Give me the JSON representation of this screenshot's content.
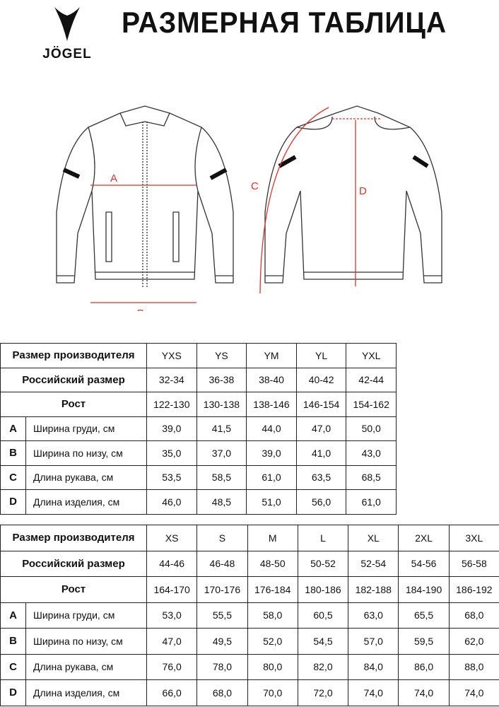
{
  "brand": "JÖGEL",
  "title": "РАЗМЕРНАЯ ТАБЛИЦА",
  "diagram": {
    "labels": {
      "a": "A",
      "b": "B",
      "c": "C",
      "d": "D"
    },
    "accent_color": "#d9342b"
  },
  "tables": [
    {
      "header_label": "Размер производителя",
      "ru_label": "Российский размер",
      "height_label": "Рост",
      "sizes": [
        "YXS",
        "YS",
        "YM",
        "YL",
        "YXL"
      ],
      "ru_sizes": [
        "32-34",
        "36-38",
        "38-40",
        "40-42",
        "42-44"
      ],
      "heights": [
        "122-130",
        "130-138",
        "138-146",
        "146-154",
        "154-162"
      ],
      "rows": [
        {
          "letter": "A",
          "label": "Ширина груди, см",
          "values": [
            "39,0",
            "41,5",
            "44,0",
            "47,0",
            "50,0"
          ]
        },
        {
          "letter": "B",
          "label": "Ширина по низу, см",
          "values": [
            "35,0",
            "37,0",
            "39,0",
            "41,0",
            "43,0"
          ]
        },
        {
          "letter": "C",
          "label": "Длина рукава, см",
          "values": [
            "53,5",
            "58,5",
            "61,0",
            "63,5",
            "68,5"
          ]
        },
        {
          "letter": "D",
          "label": "Длина изделия, см",
          "values": [
            "46,0",
            "48,5",
            "51,0",
            "56,0",
            "61,0"
          ]
        }
      ]
    },
    {
      "header_label": "Размер производителя",
      "ru_label": "Российский размер",
      "height_label": "Рост",
      "sizes": [
        "XS",
        "S",
        "M",
        "L",
        "XL",
        "2XL",
        "3XL"
      ],
      "ru_sizes": [
        "44-46",
        "46-48",
        "48-50",
        "50-52",
        "52-54",
        "54-56",
        "56-58"
      ],
      "heights": [
        "164-170",
        "170-176",
        "176-184",
        "180-186",
        "182-188",
        "184-190",
        "186-192"
      ],
      "rows": [
        {
          "letter": "A",
          "label": "Ширина груди, см",
          "values": [
            "53,0",
            "55,5",
            "58,0",
            "60,5",
            "63,0",
            "65,5",
            "68,0"
          ]
        },
        {
          "letter": "B",
          "label": "Ширина по низу, см",
          "values": [
            "47,0",
            "49,5",
            "52,0",
            "54,5",
            "57,0",
            "59,5",
            "62,0"
          ]
        },
        {
          "letter": "C",
          "label": "Длина рукава, см",
          "values": [
            "76,0",
            "78,0",
            "80,0",
            "82,0",
            "84,0",
            "86,0",
            "88,0"
          ]
        },
        {
          "letter": "D",
          "label": "Длина изделия, см",
          "values": [
            "66,0",
            "68,0",
            "70,0",
            "72,0",
            "74,0",
            "74,0",
            "74,0"
          ]
        }
      ]
    }
  ]
}
